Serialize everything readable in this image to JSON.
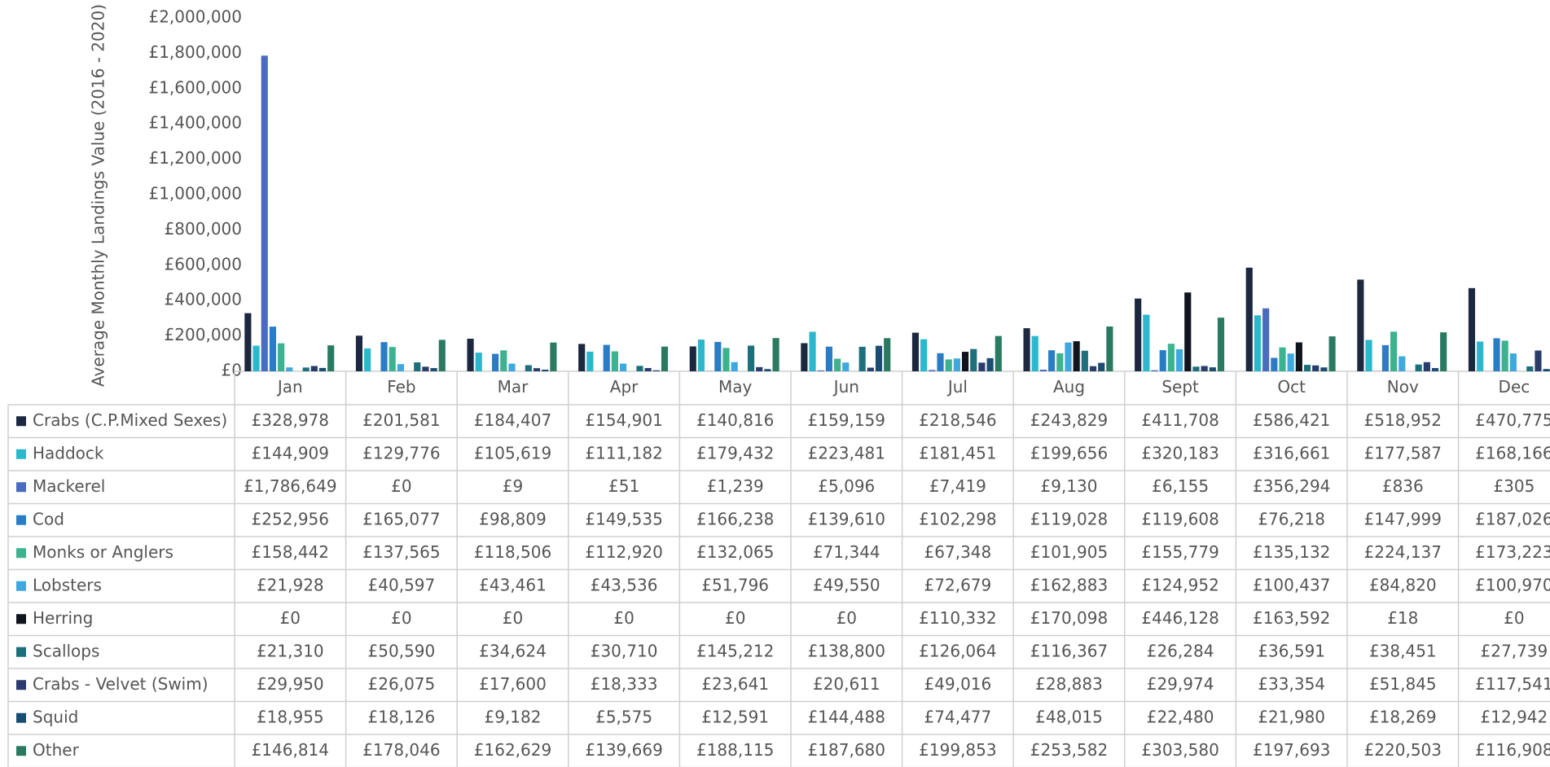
{
  "chart_data": {
    "type": "bar",
    "y_label": "Average Monthly Landings Value (2016 - 2020)",
    "categories": [
      "Jan",
      "Feb",
      "Mar",
      "Apr",
      "May",
      "Jun",
      "Jul",
      "Aug",
      "Sept",
      "Oct",
      "Nov",
      "Dec"
    ],
    "ylim": [
      0,
      2000000
    ],
    "yticks": [
      {
        "value": 0,
        "label": "£0"
      },
      {
        "value": 200000,
        "label": "£200,000"
      },
      {
        "value": 400000,
        "label": "£400,000"
      },
      {
        "value": 600000,
        "label": "£600,000"
      },
      {
        "value": 800000,
        "label": "£800,000"
      },
      {
        "value": 1000000,
        "label": "£1,000,000"
      },
      {
        "value": 1200000,
        "label": "£1,200,000"
      },
      {
        "value": 1400000,
        "label": "£1,400,000"
      },
      {
        "value": 1600000,
        "label": "£1,600,000"
      },
      {
        "value": 1800000,
        "label": "£1,800,000"
      },
      {
        "value": 2000000,
        "label": "£2,000,000"
      }
    ],
    "series": [
      {
        "name": "Crabs (C.P.Mixed Sexes)",
        "color": "#1c2840",
        "values": [
          328978,
          201581,
          184407,
          154901,
          140816,
          159159,
          218546,
          243829,
          411708,
          586421,
          518952,
          470775
        ],
        "value_labels": [
          "£328,978",
          "£201,581",
          "£184,407",
          "£154,901",
          "£140,816",
          "£159,159",
          "£218,546",
          "£243,829",
          "£411,708",
          "£586,421",
          "£518,952",
          "£470,775"
        ]
      },
      {
        "name": "Haddock",
        "color": "#2bb8cc",
        "values": [
          144909,
          129776,
          105619,
          111182,
          179432,
          223481,
          181451,
          199656,
          320183,
          316661,
          177587,
          168166
        ],
        "value_labels": [
          "£144,909",
          "£129,776",
          "£105,619",
          "£111,182",
          "£179,432",
          "£223,481",
          "£181,451",
          "£199,656",
          "£320,183",
          "£316,661",
          "£177,587",
          "£168,166"
        ]
      },
      {
        "name": "Mackerel",
        "color": "#4a6cc0",
        "values": [
          1786649,
          0,
          9,
          51,
          1239,
          5096,
          7419,
          9130,
          6155,
          356294,
          836,
          305
        ],
        "value_labels": [
          "£1,786,649",
          "£0",
          "£9",
          "£51",
          "£1,239",
          "£5,096",
          "£7,419",
          "£9,130",
          "£6,155",
          "£356,294",
          "£836",
          "£305"
        ]
      },
      {
        "name": "Cod",
        "color": "#2a7dc4",
        "values": [
          252956,
          165077,
          98809,
          149535,
          166238,
          139610,
          102298,
          119028,
          119608,
          76218,
          147999,
          187026
        ],
        "value_labels": [
          "£252,956",
          "£165,077",
          "£98,809",
          "£149,535",
          "£166,238",
          "£139,610",
          "£102,298",
          "£119,028",
          "£119,608",
          "£76,218",
          "£147,999",
          "£187,026"
        ]
      },
      {
        "name": "Monks or Anglers",
        "color": "#3db28e",
        "values": [
          158442,
          137565,
          118506,
          112920,
          132065,
          71344,
          67348,
          101905,
          155779,
          135132,
          224137,
          173223
        ],
        "value_labels": [
          "£158,442",
          "£137,565",
          "£118,506",
          "£112,920",
          "£132,065",
          "£71,344",
          "£67,348",
          "£101,905",
          "£155,779",
          "£135,132",
          "£224,137",
          "£173,223"
        ]
      },
      {
        "name": "Lobsters",
        "color": "#3fa8de",
        "values": [
          21928,
          40597,
          43461,
          43536,
          51796,
          49550,
          72679,
          162883,
          124952,
          100437,
          84820,
          100970
        ],
        "value_labels": [
          "£21,928",
          "£40,597",
          "£43,461",
          "£43,536",
          "£51,796",
          "£49,550",
          "£72,679",
          "£162,883",
          "£124,952",
          "£100,437",
          "£84,820",
          "£100,970"
        ]
      },
      {
        "name": "Herring",
        "color": "#10141c",
        "values": [
          0,
          0,
          0,
          0,
          0,
          0,
          110332,
          170098,
          446128,
          163592,
          18,
          0
        ],
        "value_labels": [
          "£0",
          "£0",
          "£0",
          "£0",
          "£0",
          "£0",
          "£110,332",
          "£170,098",
          "£446,128",
          "£163,592",
          "£18",
          "£0"
        ]
      },
      {
        "name": "Scallops",
        "color": "#1e6f7c",
        "values": [
          21310,
          50590,
          34624,
          30710,
          145212,
          138800,
          126064,
          116367,
          26284,
          36591,
          38451,
          27739
        ],
        "value_labels": [
          "£21,310",
          "£50,590",
          "£34,624",
          "£30,710",
          "£145,212",
          "£138,800",
          "£126,064",
          "£116,367",
          "£26,284",
          "£36,591",
          "£38,451",
          "£27,739"
        ]
      },
      {
        "name": "Crabs - Velvet (Swim)",
        "color": "#2a3c6c",
        "values": [
          29950,
          26075,
          17600,
          18333,
          23641,
          20611,
          49016,
          28883,
          29974,
          33354,
          51845,
          117541
        ],
        "value_labels": [
          "£29,950",
          "£26,075",
          "£17,600",
          "£18,333",
          "£23,641",
          "£20,611",
          "£49,016",
          "£28,883",
          "£29,974",
          "£33,354",
          "£51,845",
          "£117,541"
        ]
      },
      {
        "name": "Squid",
        "color": "#1b4d72",
        "values": [
          18955,
          18126,
          9182,
          5575,
          12591,
          144488,
          74477,
          48015,
          22480,
          21980,
          18269,
          12942
        ],
        "value_labels": [
          "£18,955",
          "£18,126",
          "£9,182",
          "£5,575",
          "£12,591",
          "£144,488",
          "£74,477",
          "£48,015",
          "£22,480",
          "£21,980",
          "£18,269",
          "£12,942"
        ]
      },
      {
        "name": "Other",
        "color": "#2a7a62",
        "values": [
          146814,
          178046,
          162629,
          139669,
          188115,
          187680,
          199853,
          253582,
          303580,
          197693,
          220503,
          116908
        ],
        "value_labels": [
          "£146,814",
          "£178,046",
          "£162,629",
          "£139,669",
          "£188,115",
          "£187,680",
          "£199,853",
          "£253,582",
          "£303,580",
          "£197,693",
          "£220,503",
          "£116,908"
        ]
      }
    ]
  }
}
